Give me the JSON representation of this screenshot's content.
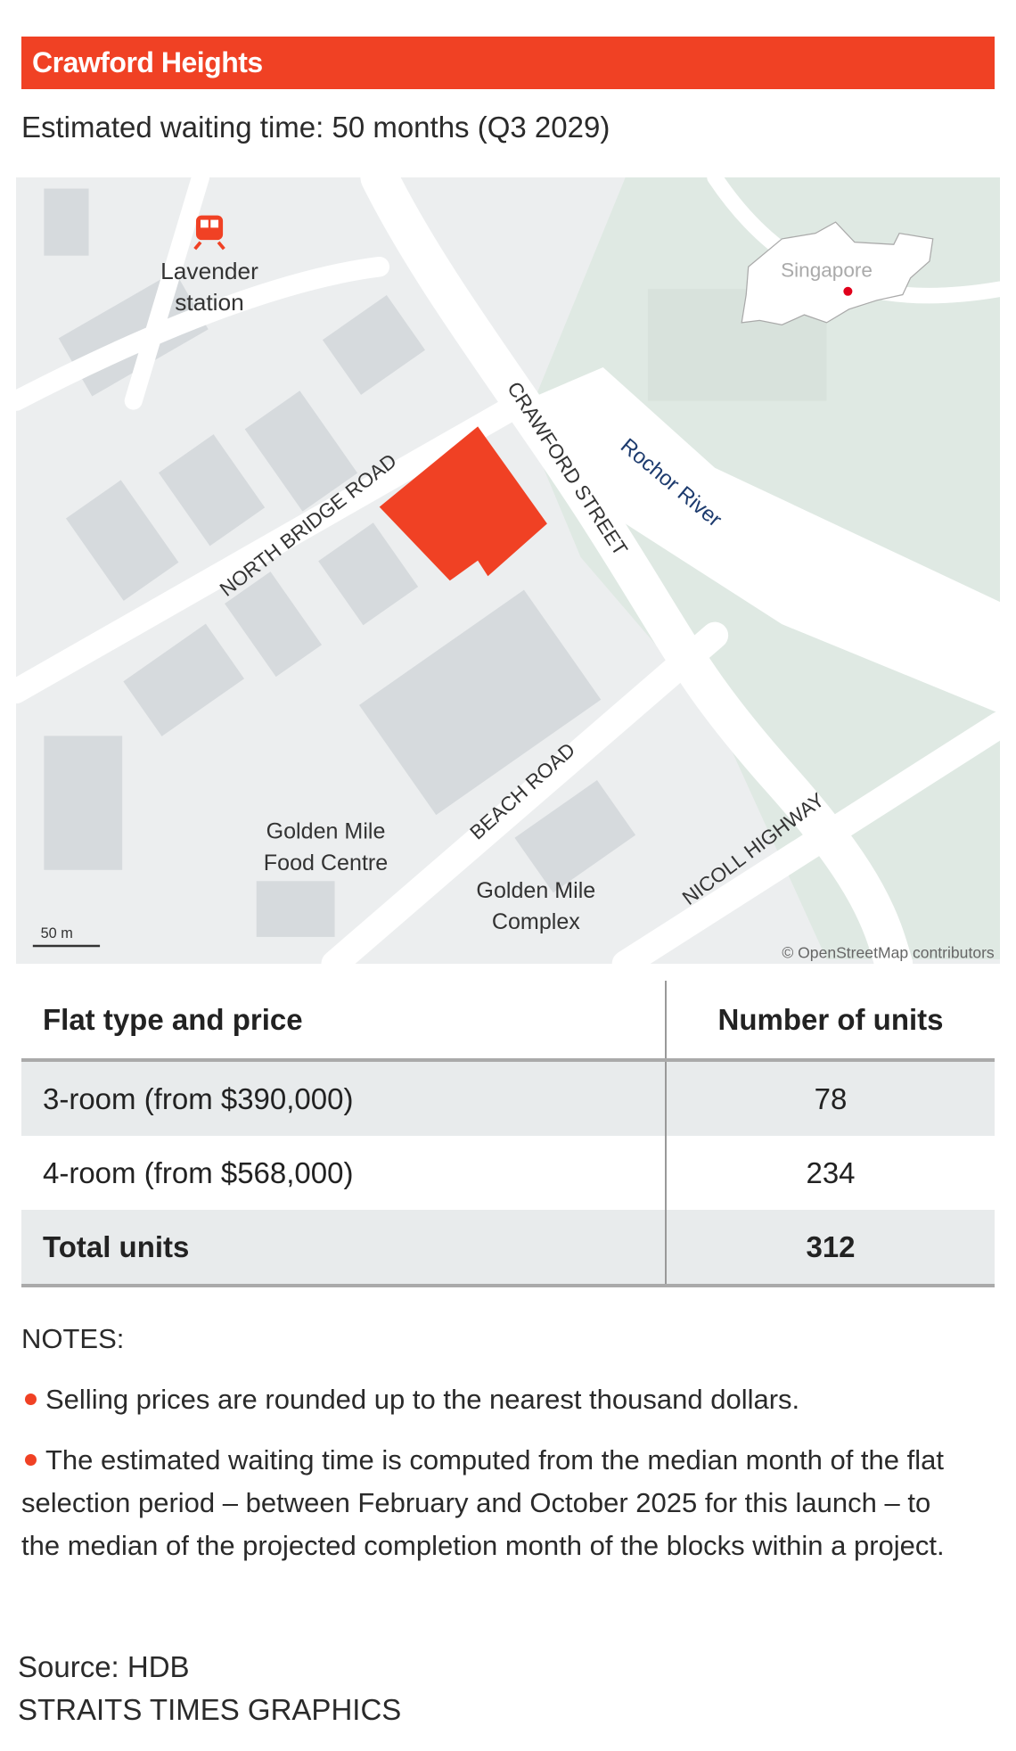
{
  "title": "Crawford Heights",
  "subtitle": "Estimated waiting time: 50 months (Q3 2029)",
  "map": {
    "labels": {
      "station_line1": "Lavender",
      "station_line2": "station",
      "north_bridge_road": "NORTH BRIDGE ROAD",
      "crawford_street": "CRAWFORD STREET",
      "rochor_river": "Rochor River",
      "beach_road": "BEACH ROAD",
      "nicoll_highway": "NICOLL HIGHWAY",
      "food_centre_line1": "Golden Mile",
      "food_centre_line2": "Food Centre",
      "complex_line1": "Golden Mile",
      "complex_line2": "Complex",
      "inset": "Singapore"
    },
    "scale": "50 m",
    "attribution": "© OpenStreetMap contributors",
    "colors": {
      "site": "#f04124",
      "water_label": "#1d3b6e",
      "green": "#dfe9e3",
      "block": "#d6dadd",
      "land": "#eceeef"
    }
  },
  "table": {
    "headers": [
      "Flat type and price",
      "Number of units"
    ],
    "rows": [
      [
        "3-room (from $390,000)",
        "78"
      ],
      [
        "4-room (from $568,000)",
        "234"
      ]
    ],
    "total": [
      "Total units",
      "312"
    ]
  },
  "notes": {
    "heading": "NOTES:",
    "items": [
      "Selling prices are rounded up to the nearest thousand dollars.",
      "The estimated waiting time is computed from the median month of the flat selection period – between February and October 2025 for this launch – to the median of the projected completion month of the blocks within a project."
    ]
  },
  "source": "Source: HDB",
  "credit": "STRAITS TIMES GRAPHICS"
}
